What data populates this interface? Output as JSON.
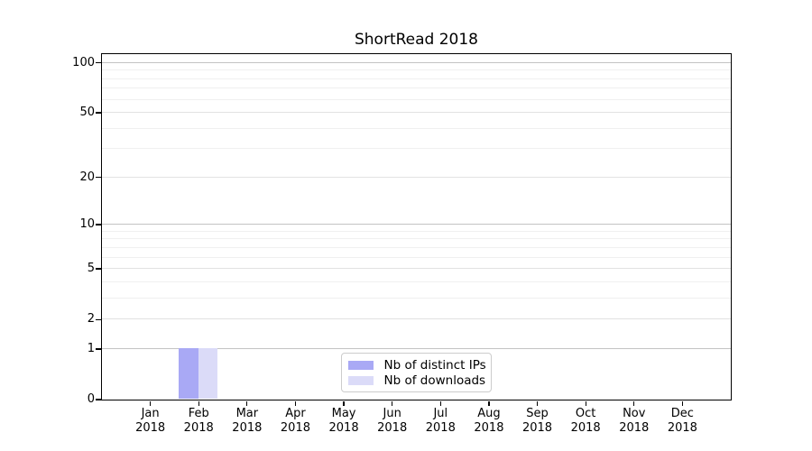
{
  "chart_data": {
    "type": "bar",
    "title": "ShortRead 2018",
    "categories": [
      "Jan 2018",
      "Feb 2018",
      "Mar 2018",
      "Apr 2018",
      "May 2018",
      "Jun 2018",
      "Jul 2018",
      "Aug 2018",
      "Sep 2018",
      "Oct 2018",
      "Nov 2018",
      "Dec 2018"
    ],
    "x_tick_months": [
      "Jan",
      "Feb",
      "Mar",
      "Apr",
      "May",
      "Jun",
      "Jul",
      "Aug",
      "Sep",
      "Oct",
      "Nov",
      "Dec"
    ],
    "x_tick_year": "2018",
    "series": [
      {
        "name": "Nb of distinct IPs",
        "color": "#a9a9f5",
        "values": [
          0,
          1,
          0,
          0,
          0,
          0,
          0,
          0,
          0,
          0,
          0,
          0
        ]
      },
      {
        "name": "Nb of downloads",
        "color": "#dbdbf8",
        "values": [
          0,
          1,
          0,
          0,
          0,
          0,
          0,
          0,
          0,
          0,
          0,
          0
        ]
      }
    ],
    "y_axis": {
      "scale": "log1p",
      "tick_values": [
        0,
        1,
        2,
        5,
        10,
        20,
        50,
        100
      ],
      "emphasized_gridlines": [
        1,
        10,
        100
      ],
      "minor_gridlines": [
        3,
        4,
        6,
        7,
        8,
        9,
        30,
        40,
        60,
        70,
        80,
        90
      ],
      "ylim": [
        0,
        113
      ]
    },
    "xlabel": "",
    "ylabel": "",
    "grid": "on",
    "legend_position": "lower center"
  }
}
